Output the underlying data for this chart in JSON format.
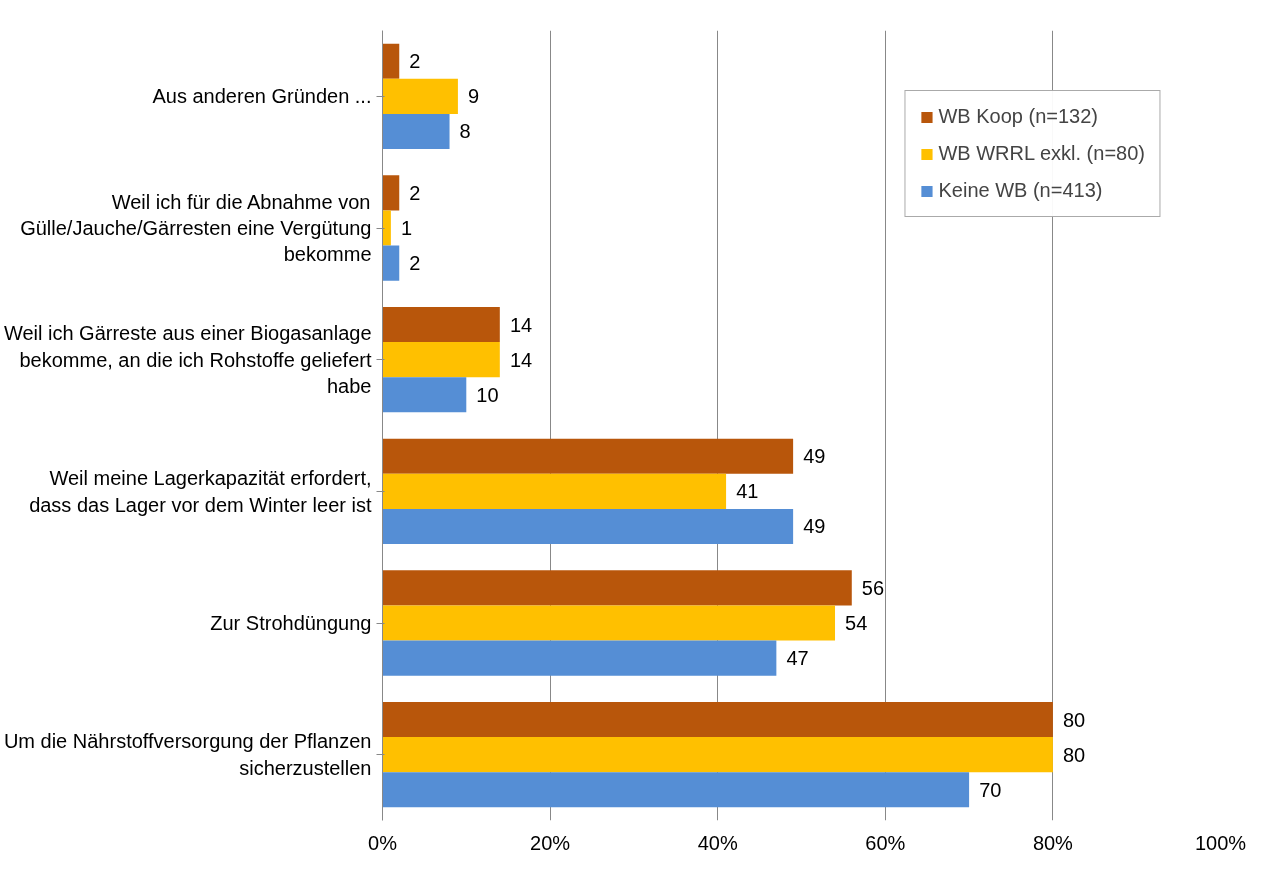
{
  "chart_data": {
    "type": "bar",
    "orientation": "horizontal",
    "categories": [
      "Aus anderen Gründen ...",
      "Weil ich für die Abnahme von Gülle/Jauche/Gärresten eine Vergütung bekomme",
      "Weil ich Gärreste aus einer Biogasanlage bekomme, an die ich Rohstoffe geliefert habe",
      "Weil meine Lagerkapazität erfordert, dass das Lager vor dem Winter leer ist",
      "Zur Strohdüngung",
      "Um die Nährstoffversorgung der Pflanzen sicherzustellen"
    ],
    "series": [
      {
        "name": "WB Koop (n=132)",
        "color": "#b8560b",
        "values": [
          2,
          2,
          14,
          49,
          56,
          80
        ]
      },
      {
        "name": "WB WRRL exkl. (n=80)",
        "color": "#ffc000",
        "values": [
          9,
          1,
          14,
          41,
          54,
          80
        ]
      },
      {
        "name": "Keine WB (n=413)",
        "color": "#558ed5",
        "values": [
          8,
          2,
          10,
          49,
          47,
          70
        ]
      }
    ],
    "xlim": [
      0,
      100
    ],
    "xticks": [
      {
        "value": 0,
        "label": "0%"
      },
      {
        "value": 20,
        "label": "20%"
      },
      {
        "value": 40,
        "label": "40%"
      },
      {
        "value": 60,
        "label": "60%"
      },
      {
        "value": 80,
        "label": "80%"
      },
      {
        "value": 100,
        "label": "100%"
      }
    ],
    "grid": "x",
    "legend": "top right",
    "data_labels": true
  }
}
